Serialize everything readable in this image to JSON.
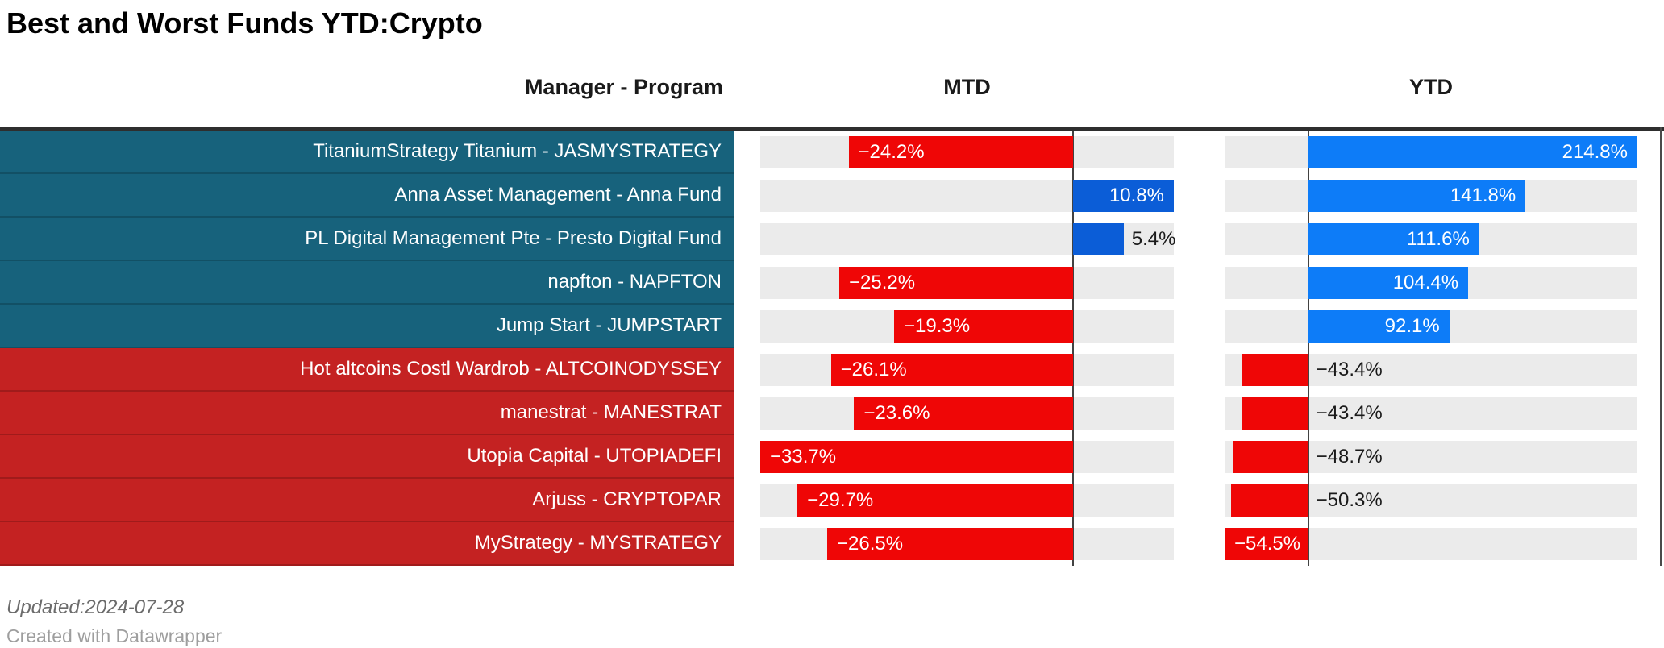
{
  "title": "Best and Worst Funds YTD:Crypto",
  "columns": {
    "manager": "Manager - Program",
    "mtd": "MTD",
    "ytd": "YTD"
  },
  "footer": {
    "updated": "Updated:2024-07-28",
    "credit": "Created with Datawrapper"
  },
  "colors": {
    "best_row_bg": "#17627c",
    "worst_row_bg": "#c42222",
    "mtd_positive_bar": "#0b5dd7",
    "ytd_positive_bar": "#0d7cf8",
    "negative_bar": "#ef0606",
    "track": "#ebebeb",
    "axis_line": "#424242",
    "inside_label": "#ffffff",
    "outside_label": "#1a1a1a"
  },
  "chart_data": {
    "type": "table",
    "title": "Best and Worst Funds YTD:Crypto",
    "columns": [
      "Manager - Program",
      "MTD",
      "YTD"
    ],
    "value_format": "percent_one_decimal",
    "mtd_axis": {
      "min": -33.7,
      "max": 10.8
    },
    "ytd_axis": {
      "min": -54.5,
      "max": 214.8
    },
    "rows": [
      {
        "manager": "TitaniumStrategy Titanium - JASMYSTRATEGY",
        "mtd": -24.2,
        "ytd": 214.8,
        "group": "best"
      },
      {
        "manager": "Anna Asset Management - Anna Fund",
        "mtd": 10.8,
        "ytd": 141.8,
        "group": "best"
      },
      {
        "manager": "PL Digital Management Pte - Presto Digital Fund",
        "mtd": 5.4,
        "ytd": 111.6,
        "group": "best"
      },
      {
        "manager": "napfton - NAPFTON",
        "mtd": -25.2,
        "ytd": 104.4,
        "group": "best"
      },
      {
        "manager": "Jump Start - JUMPSTART",
        "mtd": -19.3,
        "ytd": 92.1,
        "group": "best"
      },
      {
        "manager": "Hot altcoins Costl Wardrob - ALTCOINODYSSEY",
        "mtd": -26.1,
        "ytd": -43.4,
        "group": "worst"
      },
      {
        "manager": "manestrat - MANESTRAT",
        "mtd": -23.6,
        "ytd": -43.4,
        "group": "worst"
      },
      {
        "manager": "Utopia Capital - UTOPIADEFI",
        "mtd": -33.7,
        "ytd": -48.7,
        "group": "worst"
      },
      {
        "manager": "Arjuss - CRYPTOPAR",
        "mtd": -29.7,
        "ytd": -50.3,
        "group": "worst"
      },
      {
        "manager": "MyStrategy - MYSTRATEGY",
        "mtd": -26.5,
        "ytd": -54.5,
        "group": "worst"
      }
    ]
  }
}
